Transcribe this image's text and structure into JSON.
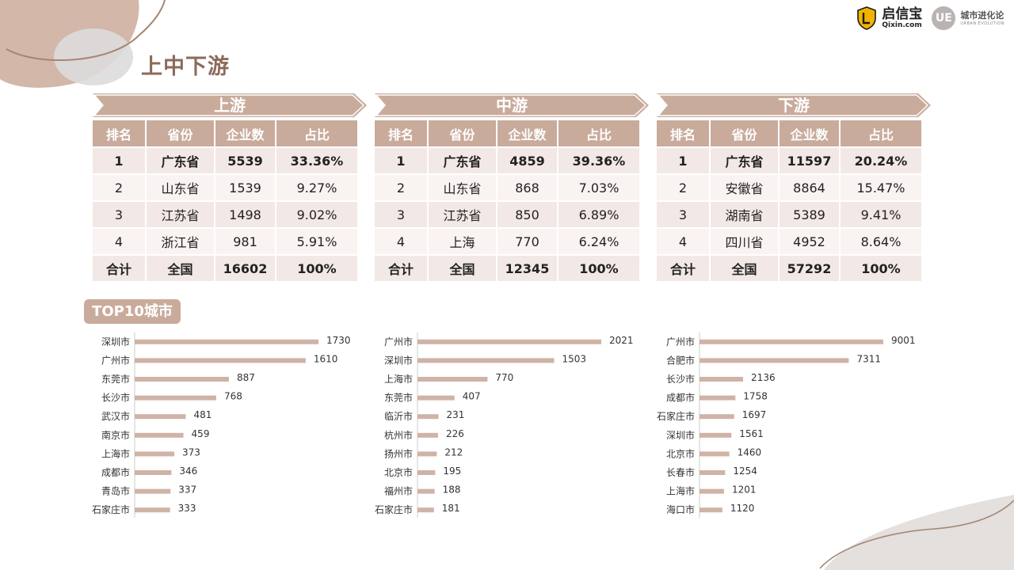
{
  "page": {
    "title": "上中下游"
  },
  "brand": {
    "qixin_cn": "启信宝",
    "qixin_en": "Qixin.com",
    "ue_mark": "UE",
    "ue_cn": "城市进化论",
    "ue_en": "URBAN EVOLUTION",
    "icons": [
      "shield-logo-icon",
      "ue-circle-logo-icon"
    ]
  },
  "colors": {
    "accent": "#c9ab9c",
    "title": "#8c6a5a",
    "bar": "#cfb3a6",
    "row": "#f2e8e5"
  },
  "top10_label": "TOP10城市",
  "tables": [
    {
      "banner": "上游",
      "headers": [
        "排名",
        "省份",
        "企业数",
        "占比"
      ],
      "rows": [
        [
          "1",
          "广东省",
          "5539",
          "33.36%"
        ],
        [
          "2",
          "山东省",
          "1539",
          "9.27%"
        ],
        [
          "3",
          "江苏省",
          "1498",
          "9.02%"
        ],
        [
          "4",
          "浙江省",
          "981",
          "5.91%"
        ],
        [
          "合计",
          "全国",
          "16602",
          "100%"
        ]
      ]
    },
    {
      "banner": "中游",
      "headers": [
        "排名",
        "省份",
        "企业数",
        "占比"
      ],
      "rows": [
        [
          "1",
          "广东省",
          "4859",
          "39.36%"
        ],
        [
          "2",
          "山东省",
          "868",
          "7.03%"
        ],
        [
          "3",
          "江苏省",
          "850",
          "6.89%"
        ],
        [
          "4",
          "上海",
          "770",
          "6.24%"
        ],
        [
          "合计",
          "全国",
          "12345",
          "100%"
        ]
      ]
    },
    {
      "banner": "下游",
      "headers": [
        "排名",
        "省份",
        "企业数",
        "占比"
      ],
      "rows": [
        [
          "1",
          "广东省",
          "11597",
          "20.24%"
        ],
        [
          "2",
          "安徽省",
          "8864",
          "15.47%"
        ],
        [
          "3",
          "湖南省",
          "5389",
          "9.41%"
        ],
        [
          "4",
          "四川省",
          "4952",
          "8.64%"
        ],
        [
          "合计",
          "全国",
          "57292",
          "100%"
        ]
      ]
    }
  ],
  "chart_data": [
    {
      "type": "bar",
      "orientation": "horizontal",
      "categories": [
        "深圳市",
        "广州市",
        "东莞市",
        "长沙市",
        "武汉市",
        "南京市",
        "上海市",
        "成都市",
        "青岛市",
        "石家庄市"
      ],
      "values": [
        1730,
        1610,
        887,
        768,
        481,
        459,
        373,
        346,
        337,
        333
      ],
      "xlim": [
        0,
        1730
      ]
    },
    {
      "type": "bar",
      "orientation": "horizontal",
      "categories": [
        "广州市",
        "深圳市",
        "上海市",
        "东莞市",
        "临沂市",
        "杭州市",
        "扬州市",
        "北京市",
        "福州市",
        "石家庄市"
      ],
      "values": [
        2021,
        1503,
        770,
        407,
        231,
        226,
        212,
        195,
        188,
        181
      ],
      "xlim": [
        0,
        2021
      ]
    },
    {
      "type": "bar",
      "orientation": "horizontal",
      "categories": [
        "广州市",
        "合肥市",
        "长沙市",
        "成都市",
        "石家庄市",
        "深圳市",
        "北京市",
        "长春市",
        "上海市",
        "海口市"
      ],
      "values": [
        9001,
        7311,
        2136,
        1758,
        1697,
        1561,
        1460,
        1254,
        1201,
        1120
      ],
      "xlim": [
        0,
        9001
      ]
    }
  ]
}
